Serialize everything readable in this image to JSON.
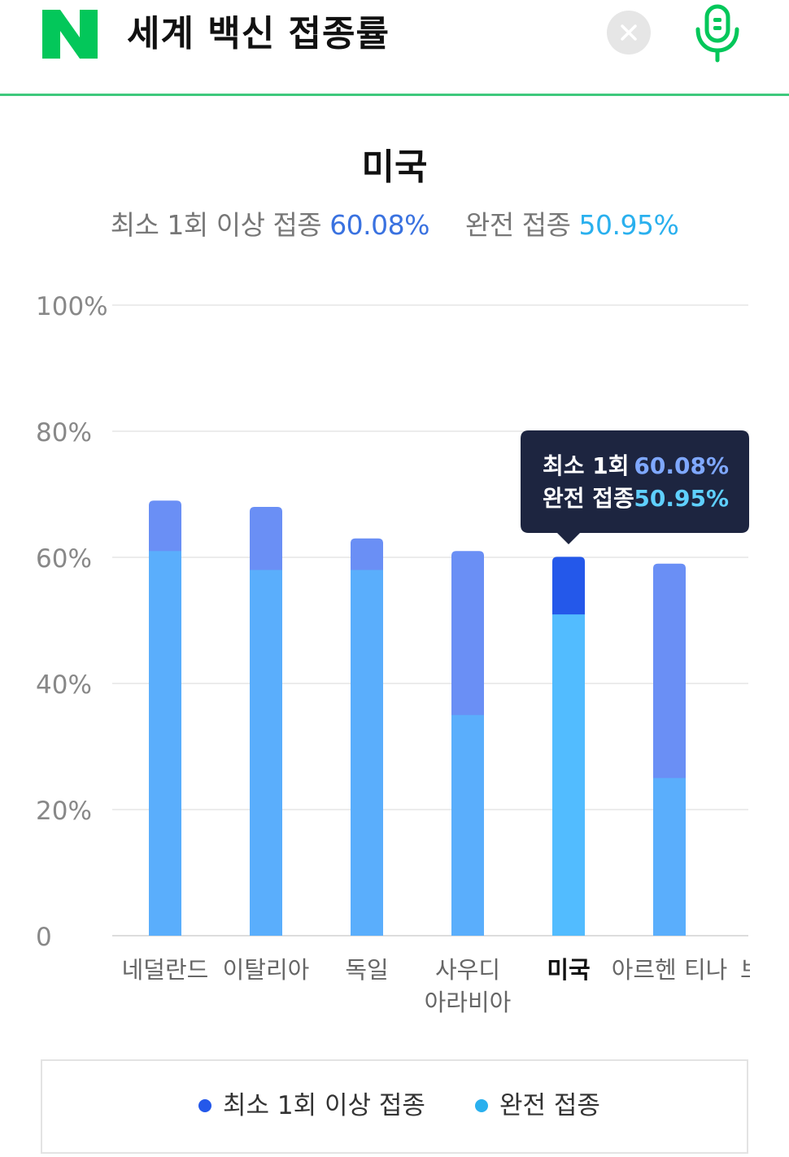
{
  "search": {
    "query": "세계 백신 접종률",
    "logo_letter": "N",
    "logo_icon": "naver-logo-icon",
    "clear_icon": "close-icon",
    "mic_icon": "microphone-icon"
  },
  "colors": {
    "brand_green": "#03c75a",
    "at_least_one": "#6a8ff5",
    "at_least_one_selected": "#2458ea",
    "fully": "#5aaefc",
    "fully_selected": "#52bcff",
    "tooltip_bg": "#1d2540",
    "tooltip_val1": "#7fa8ff",
    "tooltip_val2": "#5fd0ff"
  },
  "summary": {
    "label1": "최소 1회 이상 접종",
    "value1": "60.08%",
    "label2": "완전 접종",
    "value2": "50.95%"
  },
  "tooltip": {
    "label1": "최소 1회",
    "value1": "60.08%",
    "label2": "완전 접종",
    "value2": "50.95%"
  },
  "chart_data": {
    "type": "bar",
    "title": "미국",
    "categories": [
      "네덜란드",
      "이탈리아",
      "독일",
      "사우디 아라비아",
      "미국",
      "아르헨 티나",
      "브"
    ],
    "category_lines": [
      [
        "네덜란드"
      ],
      [
        "이탈리아"
      ],
      [
        "독일"
      ],
      [
        "사우디",
        "아라비아"
      ],
      [
        "미국"
      ],
      [
        "아르헨 티나"
      ],
      [
        "브"
      ]
    ],
    "series": [
      {
        "name": "최소 1회 이상 접종",
        "values": [
          69,
          68,
          63,
          61,
          60.08,
          59,
          null
        ]
      },
      {
        "name": "완전 접종",
        "values": [
          61,
          58,
          58,
          35,
          50.95,
          25,
          null
        ]
      }
    ],
    "selected_index": 4,
    "y_ticks": [
      "0",
      "20%",
      "40%",
      "60%",
      "80%",
      "100%"
    ],
    "ylim": [
      0,
      100
    ],
    "grid": true,
    "legend": "bottom",
    "overlay": true
  },
  "legend": {
    "item1": "최소 1회 이상 접종",
    "item2": "완전 접종",
    "dot1": "#2458ea",
    "dot2": "#2ab0ee"
  }
}
